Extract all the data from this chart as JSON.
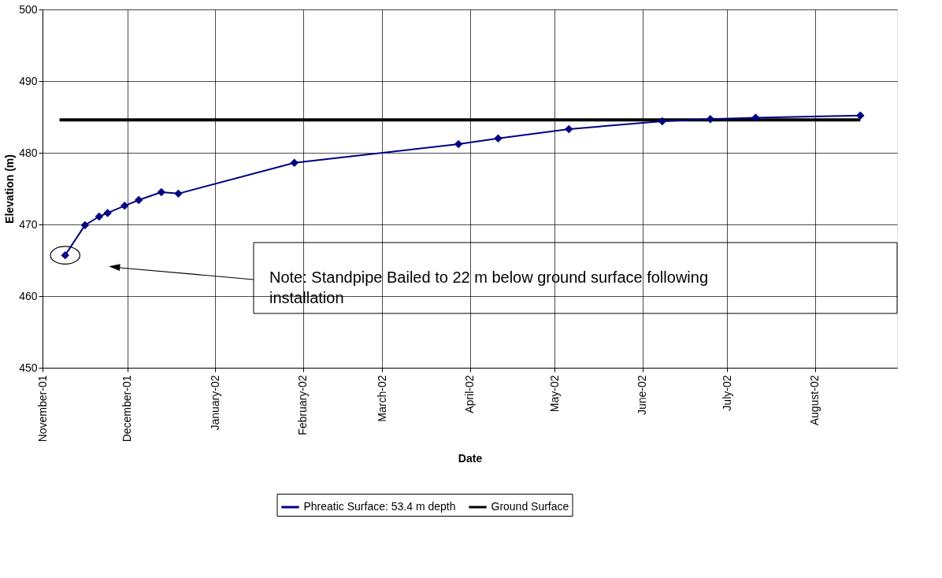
{
  "chart_data": {
    "type": "line",
    "xlabel": "Date",
    "ylabel": "Elevation (m)",
    "xlim": [
      "2001-11-01",
      "2002-08-30"
    ],
    "xticks": [
      {
        "value": "2001-11-01",
        "label": "November-01"
      },
      {
        "value": "2001-12-01",
        "label": "December-01"
      },
      {
        "value": "2002-01-01",
        "label": "January-02"
      },
      {
        "value": "2002-02-01",
        "label": "February-02"
      },
      {
        "value": "2002-03-01",
        "label": "March-02"
      },
      {
        "value": "2002-04-01",
        "label": "April-02"
      },
      {
        "value": "2002-05-01",
        "label": "May-02"
      },
      {
        "value": "2002-06-01",
        "label": "June-02"
      },
      {
        "value": "2002-07-01",
        "label": "July-02"
      },
      {
        "value": "2002-08-01",
        "label": "August-02"
      }
    ],
    "ylim": [
      450,
      500
    ],
    "yticks": [
      450,
      460,
      470,
      480,
      490,
      500
    ],
    "grid": true,
    "legend": "bottom",
    "series": [
      {
        "name": "Phreatic Surface: 53.4 m depth",
        "color": "#000080",
        "marker": "diamond",
        "x": [
          "2001-11-09",
          "2001-11-16",
          "2001-11-21",
          "2001-11-24",
          "2001-11-30",
          "2001-12-05",
          "2001-12-13",
          "2001-12-19",
          "2002-01-29",
          "2002-03-28",
          "2002-04-11",
          "2002-05-06",
          "2002-06-08",
          "2002-06-25",
          "2002-07-11",
          "2002-08-17"
        ],
        "values": [
          465.7,
          469.9,
          471.1,
          471.6,
          472.6,
          473.4,
          474.5,
          474.3,
          478.6,
          481.2,
          482.0,
          483.3,
          484.4,
          484.7,
          484.9,
          485.2
        ]
      },
      {
        "name": "Ground Surface",
        "color": "#000000",
        "marker": "none",
        "x": [
          "2001-11-07",
          "2002-08-17"
        ],
        "values": [
          484.6,
          484.6
        ]
      }
    ],
    "annotations": [
      "Note: Standpipe Bailed to 22 m below ground surface following installation"
    ]
  }
}
